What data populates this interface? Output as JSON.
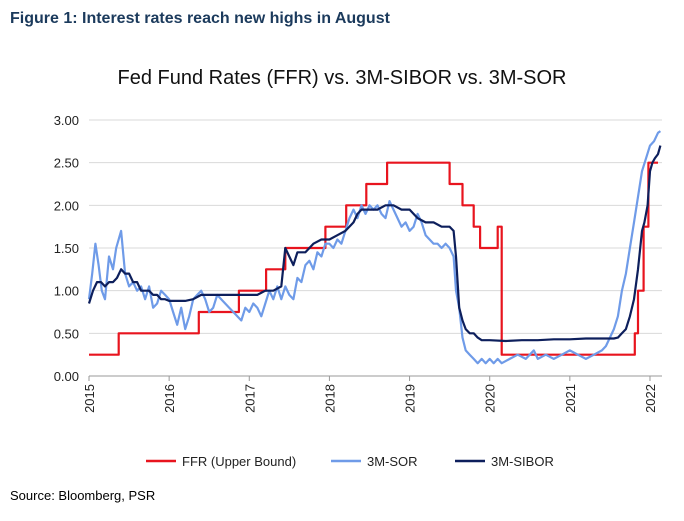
{
  "figure_title": "Figure 1: Interest rates reach new highs in August",
  "source": "Source: Bloomberg, PSR",
  "chart_data": {
    "type": "line",
    "title": "Fed Fund Rates (FFR) vs. 3M-SIBOR vs. 3M-SOR",
    "xlabel": "",
    "ylabel": "",
    "xlim": [
      2015.0,
      2022.15
    ],
    "ylim": [
      0.0,
      3.0
    ],
    "x_ticks": [
      "2015",
      "2016",
      "2017",
      "2018",
      "2019",
      "2020",
      "2021",
      "2022"
    ],
    "y_ticks": [
      "0.00",
      "0.50",
      "1.00",
      "1.50",
      "2.00",
      "2.50",
      "3.00"
    ],
    "legend_position": "bottom",
    "grid": "horizontal",
    "series": [
      {
        "name": "FFR (Upper Bound)",
        "color": "#e8141e",
        "step": true,
        "points": [
          [
            2015.0,
            0.25
          ],
          [
            2015.37,
            0.5
          ],
          [
            2016.37,
            0.75
          ],
          [
            2016.87,
            1.0
          ],
          [
            2017.0,
            1.0
          ],
          [
            2017.21,
            1.25
          ],
          [
            2017.45,
            1.5
          ],
          [
            2017.95,
            1.75
          ],
          [
            2018.21,
            2.0
          ],
          [
            2018.46,
            2.25
          ],
          [
            2018.72,
            2.5
          ],
          [
            2018.97,
            2.5
          ],
          [
            2019.5,
            2.25
          ],
          [
            2019.66,
            2.0
          ],
          [
            2019.8,
            1.75
          ],
          [
            2019.88,
            1.5
          ],
          [
            2020.1,
            1.75
          ],
          [
            2020.15,
            0.25
          ],
          [
            2021.6,
            0.25
          ],
          [
            2021.81,
            0.5
          ],
          [
            2021.85,
            1.0
          ],
          [
            2021.92,
            1.75
          ],
          [
            2021.98,
            2.5
          ],
          [
            2022.1,
            2.5
          ]
        ]
      },
      {
        "name": "3M-SOR",
        "color": "#6f9be8",
        "step": false,
        "points": [
          [
            2015.0,
            0.9
          ],
          [
            2015.04,
            1.2
          ],
          [
            2015.08,
            1.55
          ],
          [
            2015.12,
            1.3
          ],
          [
            2015.16,
            1.0
          ],
          [
            2015.2,
            0.9
          ],
          [
            2015.25,
            1.4
          ],
          [
            2015.3,
            1.25
          ],
          [
            2015.34,
            1.5
          ],
          [
            2015.4,
            1.7
          ],
          [
            2015.45,
            1.2
          ],
          [
            2015.5,
            1.05
          ],
          [
            2015.55,
            1.1
          ],
          [
            2015.6,
            1.0
          ],
          [
            2015.65,
            1.05
          ],
          [
            2015.7,
            0.9
          ],
          [
            2015.75,
            1.05
          ],
          [
            2015.8,
            0.8
          ],
          [
            2015.85,
            0.85
          ],
          [
            2015.9,
            1.0
          ],
          [
            2015.95,
            0.95
          ],
          [
            2016.0,
            0.9
          ],
          [
            2016.05,
            0.75
          ],
          [
            2016.1,
            0.6
          ],
          [
            2016.15,
            0.8
          ],
          [
            2016.2,
            0.55
          ],
          [
            2016.25,
            0.7
          ],
          [
            2016.3,
            0.9
          ],
          [
            2016.35,
            0.95
          ],
          [
            2016.4,
            1.0
          ],
          [
            2016.45,
            0.9
          ],
          [
            2016.5,
            0.75
          ],
          [
            2016.55,
            0.8
          ],
          [
            2016.6,
            0.95
          ],
          [
            2016.65,
            0.9
          ],
          [
            2016.7,
            0.85
          ],
          [
            2016.75,
            0.8
          ],
          [
            2016.8,
            0.75
          ],
          [
            2016.85,
            0.7
          ],
          [
            2016.9,
            0.65
          ],
          [
            2016.95,
            0.8
          ],
          [
            2017.0,
            0.75
          ],
          [
            2017.05,
            0.85
          ],
          [
            2017.1,
            0.8
          ],
          [
            2017.15,
            0.7
          ],
          [
            2017.2,
            0.85
          ],
          [
            2017.25,
            1.0
          ],
          [
            2017.3,
            0.9
          ],
          [
            2017.35,
            1.05
          ],
          [
            2017.4,
            0.9
          ],
          [
            2017.45,
            1.05
          ],
          [
            2017.5,
            0.95
          ],
          [
            2017.55,
            0.9
          ],
          [
            2017.6,
            1.15
          ],
          [
            2017.65,
            1.1
          ],
          [
            2017.7,
            1.3
          ],
          [
            2017.75,
            1.35
          ],
          [
            2017.8,
            1.25
          ],
          [
            2017.85,
            1.45
          ],
          [
            2017.9,
            1.4
          ],
          [
            2017.95,
            1.55
          ],
          [
            2018.0,
            1.55
          ],
          [
            2018.05,
            1.5
          ],
          [
            2018.1,
            1.6
          ],
          [
            2018.15,
            1.55
          ],
          [
            2018.2,
            1.7
          ],
          [
            2018.25,
            1.85
          ],
          [
            2018.3,
            1.95
          ],
          [
            2018.35,
            1.85
          ],
          [
            2018.4,
            2.0
          ],
          [
            2018.45,
            1.9
          ],
          [
            2018.5,
            2.0
          ],
          [
            2018.55,
            1.95
          ],
          [
            2018.6,
            2.0
          ],
          [
            2018.65,
            1.9
          ],
          [
            2018.7,
            1.85
          ],
          [
            2018.75,
            2.05
          ],
          [
            2018.8,
            1.95
          ],
          [
            2018.85,
            1.85
          ],
          [
            2018.9,
            1.75
          ],
          [
            2018.95,
            1.8
          ],
          [
            2019.0,
            1.7
          ],
          [
            2019.05,
            1.75
          ],
          [
            2019.1,
            1.9
          ],
          [
            2019.15,
            1.8
          ],
          [
            2019.2,
            1.65
          ],
          [
            2019.25,
            1.6
          ],
          [
            2019.3,
            1.55
          ],
          [
            2019.35,
            1.55
          ],
          [
            2019.4,
            1.5
          ],
          [
            2019.45,
            1.55
          ],
          [
            2019.5,
            1.5
          ],
          [
            2019.55,
            1.4
          ],
          [
            2019.58,
            1.0
          ],
          [
            2019.62,
            0.8
          ],
          [
            2019.66,
            0.45
          ],
          [
            2019.7,
            0.3
          ],
          [
            2019.75,
            0.25
          ],
          [
            2019.8,
            0.2
          ],
          [
            2019.85,
            0.15
          ],
          [
            2019.9,
            0.2
          ],
          [
            2019.95,
            0.15
          ],
          [
            2020.0,
            0.2
          ],
          [
            2020.05,
            0.15
          ],
          [
            2020.1,
            0.2
          ],
          [
            2020.15,
            0.15
          ],
          [
            2020.25,
            0.2
          ],
          [
            2020.35,
            0.25
          ],
          [
            2020.45,
            0.2
          ],
          [
            2020.55,
            0.3
          ],
          [
            2020.6,
            0.2
          ],
          [
            2020.7,
            0.25
          ],
          [
            2020.8,
            0.2
          ],
          [
            2020.9,
            0.25
          ],
          [
            2021.0,
            0.3
          ],
          [
            2021.1,
            0.25
          ],
          [
            2021.2,
            0.2
          ],
          [
            2021.3,
            0.25
          ],
          [
            2021.4,
            0.3
          ],
          [
            2021.45,
            0.35
          ],
          [
            2021.5,
            0.45
          ],
          [
            2021.55,
            0.55
          ],
          [
            2021.6,
            0.7
          ],
          [
            2021.65,
            1.0
          ],
          [
            2021.7,
            1.2
          ],
          [
            2021.75,
            1.5
          ],
          [
            2021.8,
            1.8
          ],
          [
            2021.85,
            2.1
          ],
          [
            2021.9,
            2.4
          ],
          [
            2021.95,
            2.55
          ],
          [
            2022.0,
            2.7
          ],
          [
            2022.05,
            2.75
          ],
          [
            2022.1,
            2.85
          ],
          [
            2022.13,
            2.87
          ]
        ]
      },
      {
        "name": "3M-SIBOR",
        "color": "#0d1f5c",
        "step": false,
        "points": [
          [
            2015.0,
            0.85
          ],
          [
            2015.05,
            1.0
          ],
          [
            2015.1,
            1.1
          ],
          [
            2015.15,
            1.1
          ],
          [
            2015.2,
            1.05
          ],
          [
            2015.25,
            1.1
          ],
          [
            2015.3,
            1.1
          ],
          [
            2015.35,
            1.15
          ],
          [
            2015.4,
            1.25
          ],
          [
            2015.45,
            1.2
          ],
          [
            2015.5,
            1.2
          ],
          [
            2015.55,
            1.1
          ],
          [
            2015.6,
            1.1
          ],
          [
            2015.65,
            1.0
          ],
          [
            2015.7,
            1.0
          ],
          [
            2015.75,
            1.0
          ],
          [
            2015.8,
            0.95
          ],
          [
            2015.85,
            0.95
          ],
          [
            2015.9,
            0.9
          ],
          [
            2015.95,
            0.9
          ],
          [
            2016.0,
            0.88
          ],
          [
            2016.2,
            0.88
          ],
          [
            2016.3,
            0.9
          ],
          [
            2016.4,
            0.95
          ],
          [
            2016.5,
            0.95
          ],
          [
            2016.6,
            0.95
          ],
          [
            2016.7,
            0.95
          ],
          [
            2016.8,
            0.95
          ],
          [
            2016.9,
            0.95
          ],
          [
            2017.0,
            0.95
          ],
          [
            2017.1,
            0.95
          ],
          [
            2017.2,
            1.0
          ],
          [
            2017.3,
            1.0
          ],
          [
            2017.4,
            1.05
          ],
          [
            2017.45,
            1.5
          ],
          [
            2017.5,
            1.4
          ],
          [
            2017.55,
            1.3
          ],
          [
            2017.6,
            1.45
          ],
          [
            2017.7,
            1.45
          ],
          [
            2017.8,
            1.55
          ],
          [
            2017.9,
            1.6
          ],
          [
            2018.0,
            1.6
          ],
          [
            2018.1,
            1.65
          ],
          [
            2018.2,
            1.7
          ],
          [
            2018.3,
            1.8
          ],
          [
            2018.35,
            1.9
          ],
          [
            2018.4,
            1.95
          ],
          [
            2018.5,
            1.95
          ],
          [
            2018.6,
            1.95
          ],
          [
            2018.7,
            2.0
          ],
          [
            2018.8,
            2.0
          ],
          [
            2018.9,
            1.95
          ],
          [
            2019.0,
            1.95
          ],
          [
            2019.1,
            1.85
          ],
          [
            2019.2,
            1.8
          ],
          [
            2019.3,
            1.8
          ],
          [
            2019.4,
            1.75
          ],
          [
            2019.5,
            1.75
          ],
          [
            2019.55,
            1.7
          ],
          [
            2019.58,
            1.4
          ],
          [
            2019.62,
            0.8
          ],
          [
            2019.66,
            0.65
          ],
          [
            2019.7,
            0.55
          ],
          [
            2019.75,
            0.5
          ],
          [
            2019.8,
            0.5
          ],
          [
            2019.85,
            0.45
          ],
          [
            2019.9,
            0.42
          ],
          [
            2020.0,
            0.42
          ],
          [
            2020.2,
            0.41
          ],
          [
            2020.4,
            0.42
          ],
          [
            2020.6,
            0.42
          ],
          [
            2020.8,
            0.43
          ],
          [
            2021.0,
            0.43
          ],
          [
            2021.2,
            0.44
          ],
          [
            2021.4,
            0.44
          ],
          [
            2021.55,
            0.44
          ],
          [
            2021.6,
            0.45
          ],
          [
            2021.65,
            0.5
          ],
          [
            2021.7,
            0.55
          ],
          [
            2021.75,
            0.7
          ],
          [
            2021.8,
            0.9
          ],
          [
            2021.85,
            1.25
          ],
          [
            2021.9,
            1.7
          ],
          [
            2021.93,
            1.8
          ],
          [
            2021.97,
            2.0
          ],
          [
            2022.0,
            2.4
          ],
          [
            2022.03,
            2.5
          ],
          [
            2022.06,
            2.55
          ],
          [
            2022.1,
            2.6
          ],
          [
            2022.13,
            2.7
          ]
        ]
      }
    ]
  }
}
